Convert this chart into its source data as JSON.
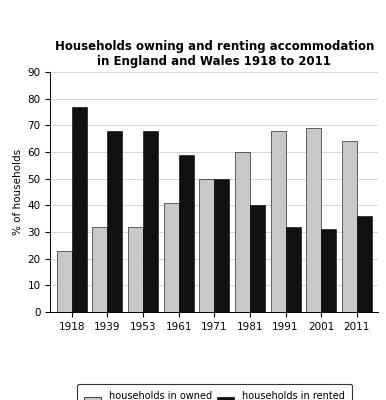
{
  "title": "Households owning and renting accommodation\nin England and Wales 1918 to 2011",
  "years": [
    "1918",
    "1939",
    "1953",
    "1961",
    "1971",
    "1981",
    "1991",
    "2001",
    "2011"
  ],
  "owned": [
    23,
    32,
    32,
    41,
    50,
    60,
    68,
    69,
    64
  ],
  "rented": [
    77,
    68,
    68,
    59,
    50,
    40,
    32,
    31,
    36
  ],
  "owned_color": "#c8c8c8",
  "rented_color": "#111111",
  "ylabel": "% of households",
  "ylim": [
    0,
    90
  ],
  "yticks": [
    0,
    10,
    20,
    30,
    40,
    50,
    60,
    70,
    80,
    90
  ],
  "legend_owned": "households in owned\naccommodation",
  "legend_rented": "households in rented\naccommodation",
  "title_fontsize": 8.5,
  "axis_fontsize": 7.5,
  "tick_fontsize": 7.5,
  "legend_fontsize": 7,
  "bar_width": 0.42
}
